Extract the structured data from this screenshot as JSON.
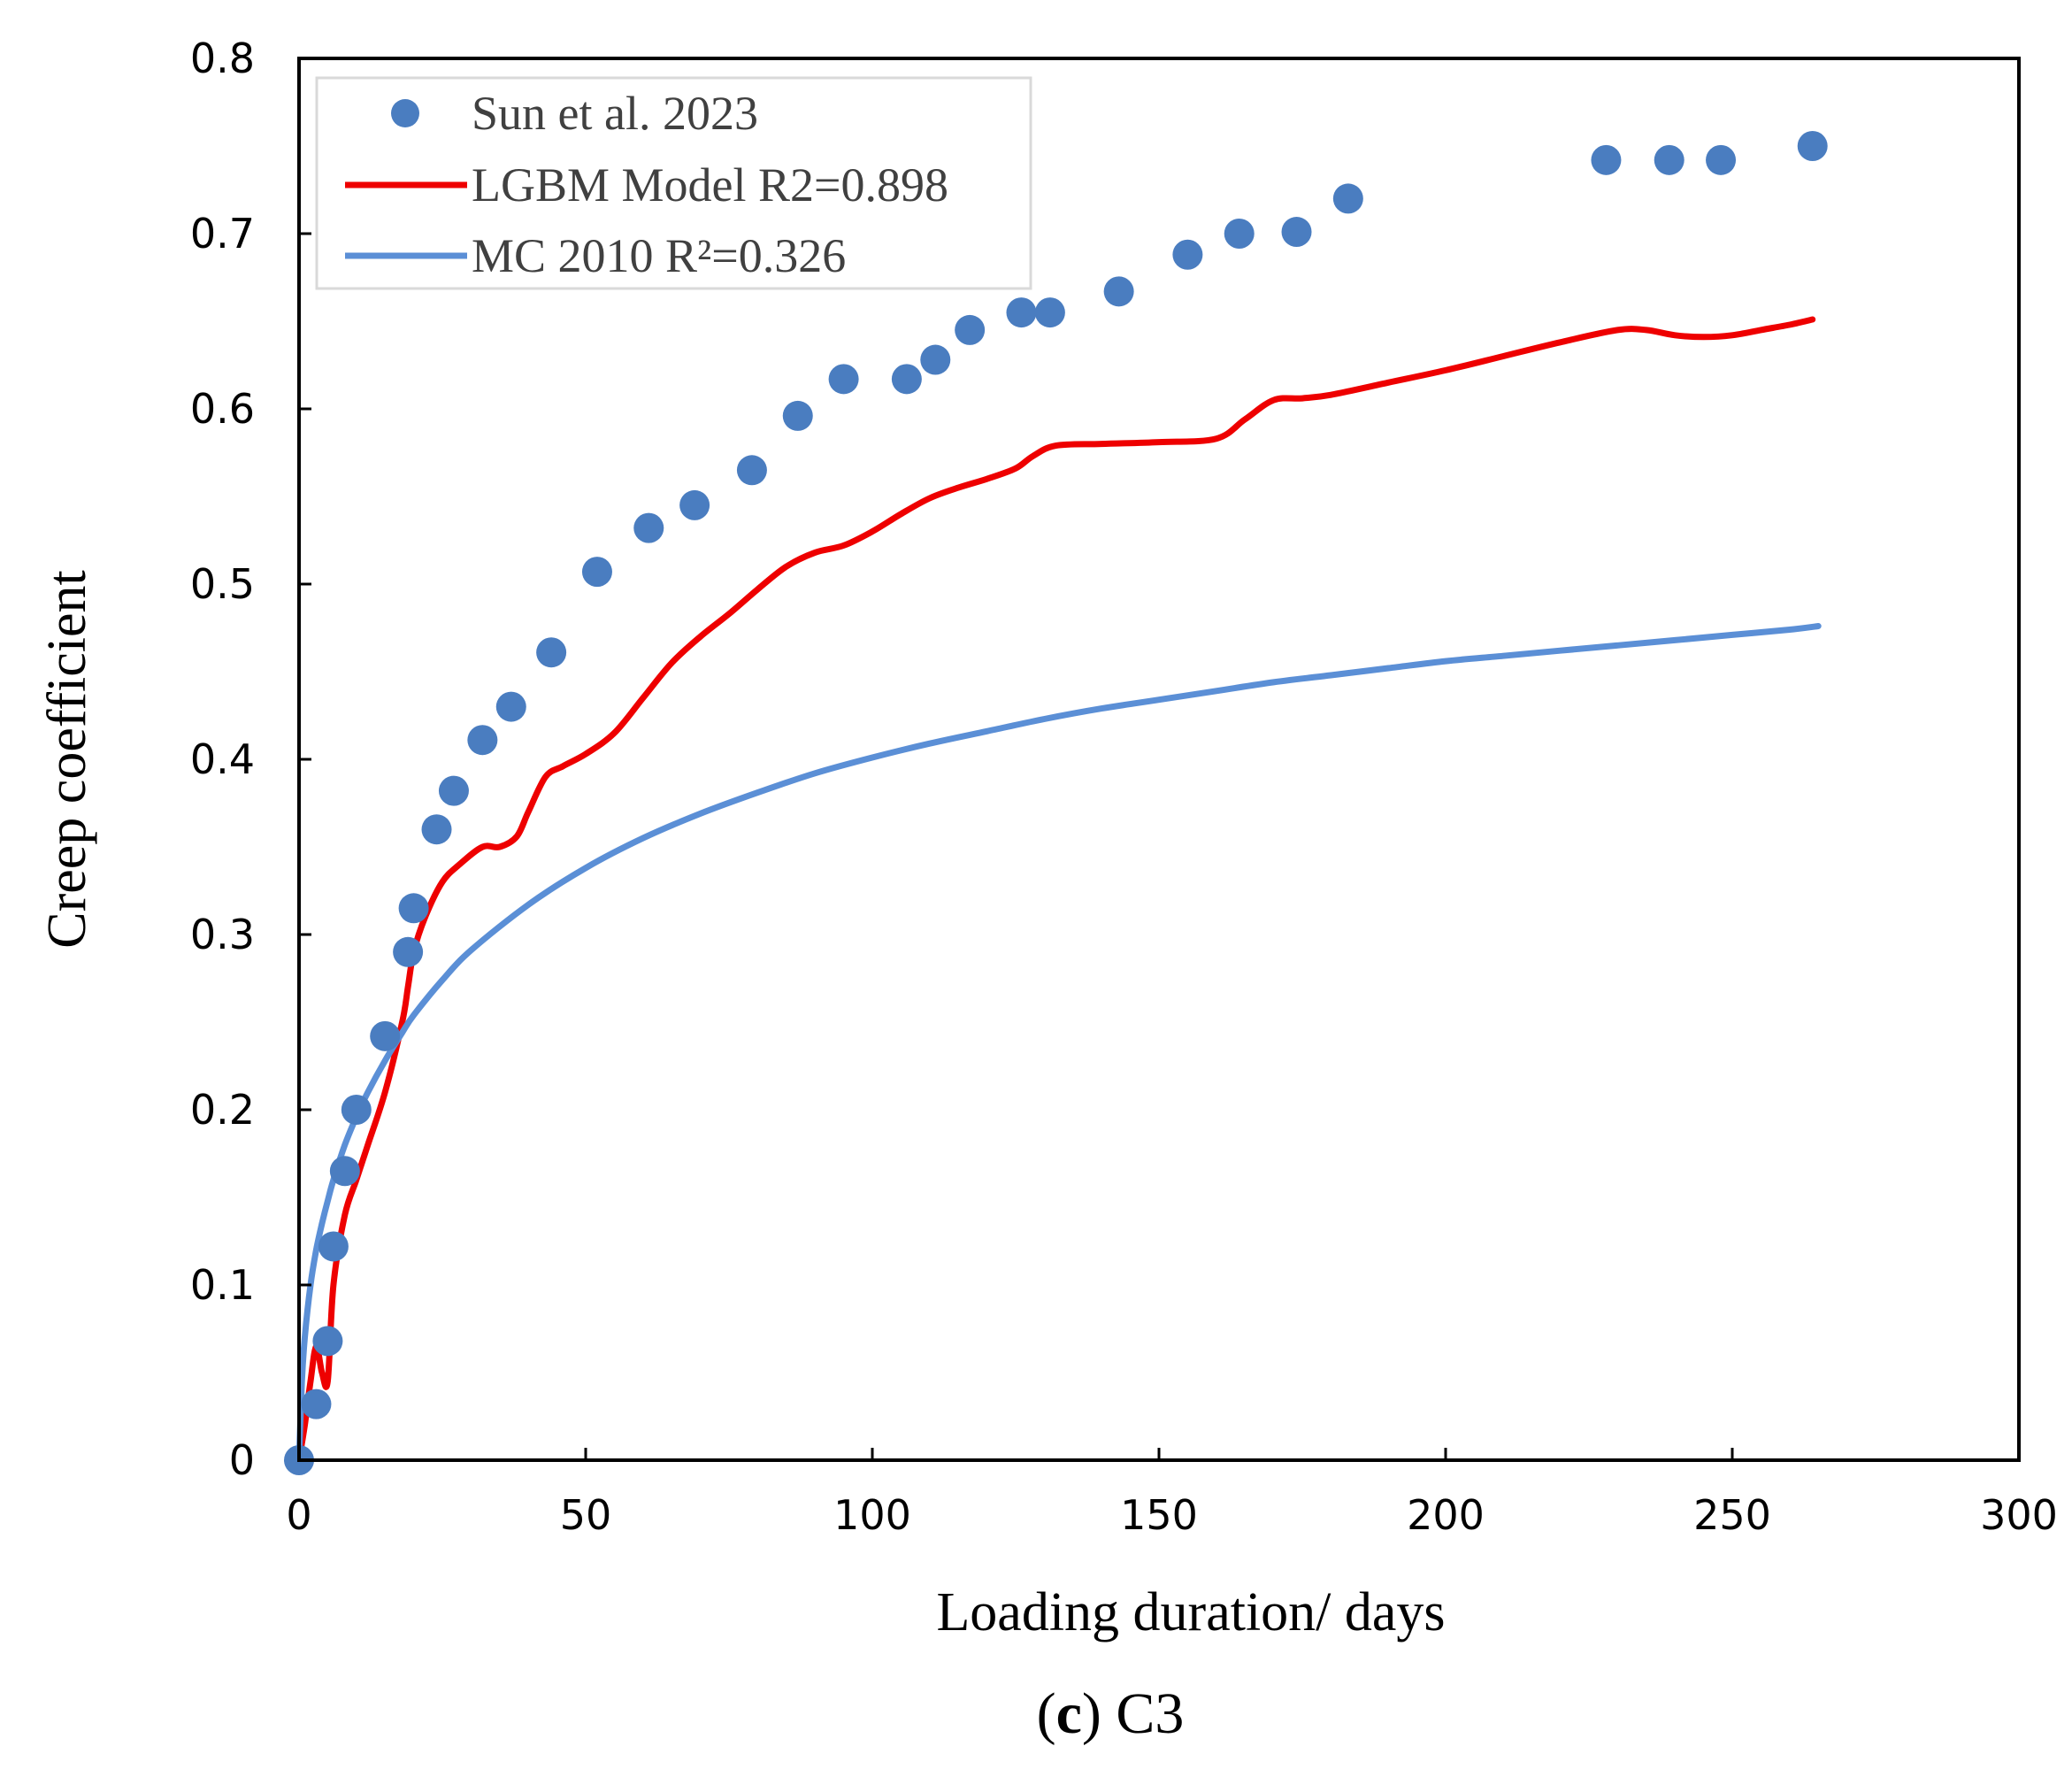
{
  "chart_data": {
    "type": "scatter",
    "xlabel": "Loading duration/ days",
    "ylabel": "Creep coefficient",
    "caption": {
      "prefix": "(",
      "letter": "c",
      "suffix": ") C3"
    },
    "xlim": [
      0,
      300
    ],
    "ylim": [
      0,
      0.8
    ],
    "xticks": [
      0,
      50,
      100,
      150,
      200,
      250,
      300
    ],
    "yticks": [
      0,
      0.1,
      0.2,
      0.3,
      0.4,
      0.5,
      0.6,
      0.7,
      0.8
    ],
    "xtick_labels": [
      "0",
      "50",
      "100",
      "150",
      "200",
      "250",
      "300"
    ],
    "ytick_labels": [
      "0",
      "0.1",
      "0.2",
      "0.3",
      "0.4",
      "0.5",
      "0.6",
      "0.7",
      "0.8"
    ],
    "grid": false,
    "legend_position": "top-left",
    "series": [
      {
        "name": "Sun et al. 2023",
        "kind": "scatter",
        "color": "#4A7DC0",
        "x": [
          0,
          3,
          5,
          6,
          8,
          10,
          15,
          19,
          20,
          24,
          27,
          32,
          37,
          44,
          52,
          61,
          69,
          79,
          87,
          95,
          106,
          111,
          117,
          126,
          131,
          143,
          155,
          164,
          174,
          183,
          228,
          239,
          248,
          264
        ],
        "y": [
          0,
          0.032,
          0.068,
          0.122,
          0.165,
          0.2,
          0.242,
          0.29,
          0.315,
          0.36,
          0.382,
          0.411,
          0.43,
          0.461,
          0.507,
          0.532,
          0.545,
          0.565,
          0.596,
          0.617,
          0.617,
          0.628,
          0.645,
          0.655,
          0.655,
          0.667,
          0.688,
          0.7,
          0.701,
          0.72,
          0.742,
          0.742,
          0.742,
          0.75
        ]
      },
      {
        "name": "LGBM Model R2=0.898",
        "kind": "line",
        "color": "#EE0000",
        "x": [
          0,
          1,
          2,
          3,
          4,
          5,
          6,
          8,
          10,
          12,
          15,
          18,
          19,
          20,
          22,
          25,
          28,
          32,
          35,
          38,
          40,
          43,
          46,
          50,
          55,
          60,
          65,
          70,
          75,
          80,
          85,
          90,
          95,
          100,
          105,
          110,
          115,
          120,
          125,
          128,
          132,
          140,
          150,
          160,
          165,
          170,
          175,
          180,
          190,
          200,
          210,
          220,
          230,
          235,
          240,
          245,
          250,
          255,
          260,
          264
        ],
        "y": [
          0,
          0.02,
          0.045,
          0.065,
          0.05,
          0.045,
          0.1,
          0.14,
          0.16,
          0.18,
          0.21,
          0.25,
          0.27,
          0.29,
          0.31,
          0.33,
          0.34,
          0.35,
          0.35,
          0.356,
          0.37,
          0.39,
          0.396,
          0.403,
          0.415,
          0.435,
          0.455,
          0.47,
          0.483,
          0.497,
          0.51,
          0.518,
          0.522,
          0.53,
          0.54,
          0.549,
          0.555,
          0.56,
          0.566,
          0.573,
          0.579,
          0.58,
          0.581,
          0.583,
          0.594,
          0.605,
          0.606,
          0.608,
          0.615,
          0.622,
          0.63,
          0.638,
          0.645,
          0.645,
          0.642,
          0.641,
          0.642,
          0.645,
          0.648,
          0.651
        ]
      },
      {
        "name": "MC 2010 R²=0.326",
        "kind": "line",
        "color": "#5B8FD6",
        "x": [
          0,
          0.5,
          1,
          2,
          3,
          4,
          5,
          6,
          8,
          10,
          12,
          15,
          18,
          20,
          25,
          30,
          40,
          50,
          60,
          70,
          80,
          90,
          100,
          110,
          120,
          130,
          140,
          150,
          160,
          170,
          180,
          190,
          200,
          210,
          220,
          230,
          240,
          250,
          260,
          265
        ],
        "y": [
          0,
          0.045,
          0.07,
          0.1,
          0.12,
          0.135,
          0.148,
          0.16,
          0.18,
          0.196,
          0.21,
          0.228,
          0.244,
          0.254,
          0.274,
          0.291,
          0.317,
          0.338,
          0.355,
          0.369,
          0.381,
          0.392,
          0.401,
          0.409,
          0.416,
          0.423,
          0.429,
          0.434,
          0.439,
          0.444,
          0.448,
          0.452,
          0.456,
          0.459,
          0.462,
          0.465,
          0.468,
          0.471,
          0.474,
          0.476
        ]
      }
    ]
  }
}
